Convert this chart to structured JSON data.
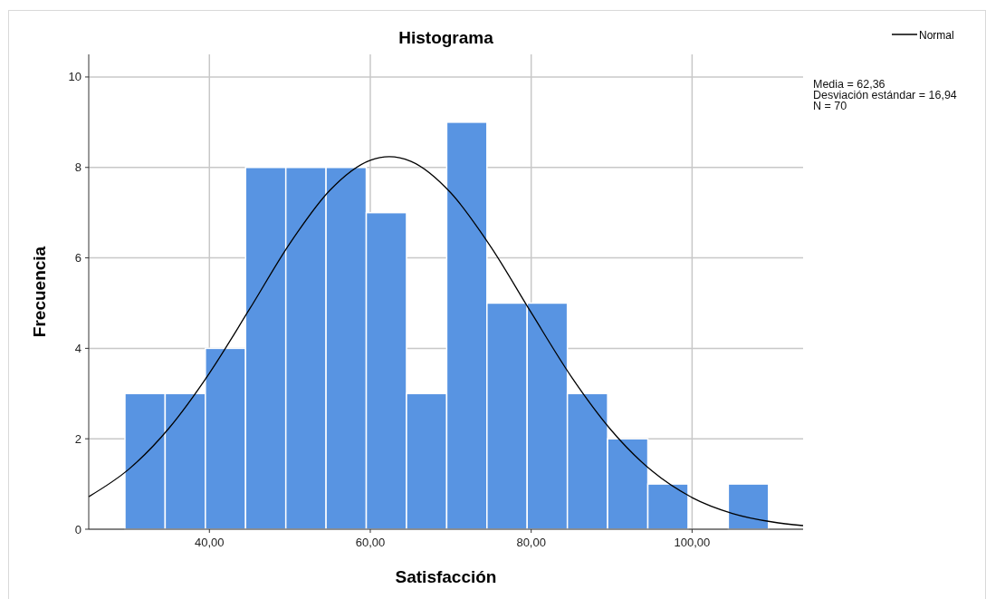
{
  "chart_data": {
    "type": "histogram",
    "title": "Histograma",
    "xlabel": "Satisfacción",
    "ylabel": "Frecuencia",
    "bins": [
      29.5,
      34.5,
      39.5,
      44.5,
      49.5,
      54.5,
      59.5,
      64.5,
      69.5,
      74.5,
      79.5,
      84.5,
      89.5,
      94.5,
      99.5,
      104.5,
      109.5
    ],
    "values": [
      3,
      3,
      4,
      8,
      8,
      8,
      7,
      3,
      9,
      5,
      5,
      3,
      2,
      1,
      0,
      1
    ],
    "color": "#5894e2",
    "series": [
      {
        "type": "line",
        "name": "Normal",
        "color": "#000000",
        "x": [
          25,
          30,
          35,
          40,
          45,
          50,
          55,
          60,
          62.36,
          65,
          70,
          75,
          80,
          85,
          90,
          95,
          100,
          105,
          110,
          113.8
        ],
        "values": [
          0.72,
          1.33,
          2.24,
          3.45,
          4.87,
          6.32,
          7.5,
          8.16,
          8.24,
          8.14,
          7.44,
          6.24,
          4.79,
          3.37,
          2.18,
          1.29,
          0.7,
          0.35,
          0.16,
          0.08
        ]
      }
    ],
    "xlim": [
      25,
      113.8
    ],
    "xticks": [
      {
        "value": 40,
        "label": "40,00"
      },
      {
        "value": 60,
        "label": "60,00"
      },
      {
        "value": 80,
        "label": "80,00"
      },
      {
        "value": 100,
        "label": "100,00"
      }
    ],
    "ylim": [
      0,
      10.5
    ],
    "yticks": [
      0,
      2,
      4,
      6,
      8,
      10
    ],
    "grid": true,
    "legend": "top right",
    "annotations": [
      "Media = 62,36",
      "Desviación estándar = 16,94",
      "N = 70"
    ]
  }
}
